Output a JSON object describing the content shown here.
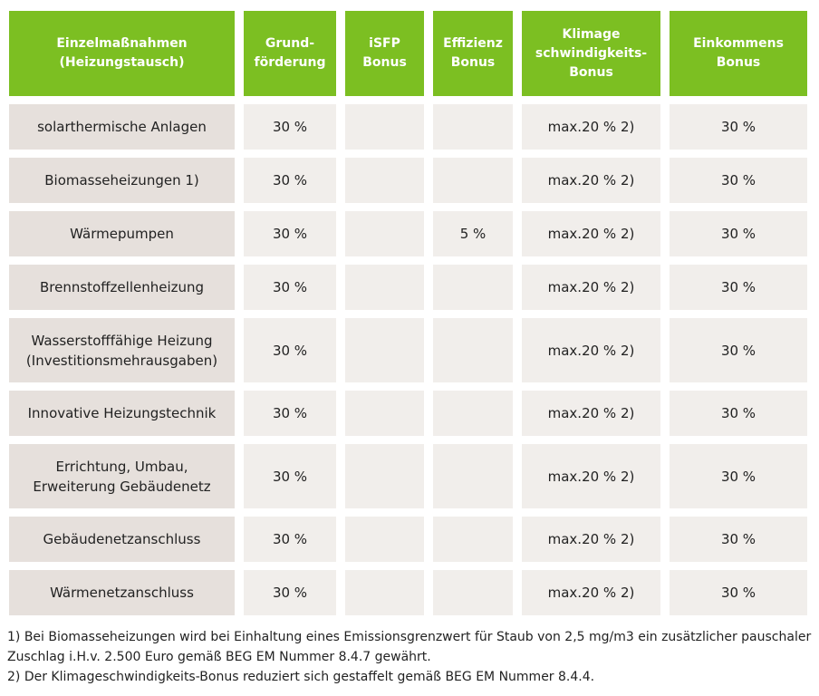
{
  "table": {
    "headers": [
      "Einzelmaßnahmen\n(Heizungstausch)",
      "Grund-\nförderung",
      "iSFP\nBonus",
      "Effizienz\nBonus",
      "Klimage\nschwindigkeits-\nBonus",
      "Einkommens\nBonus"
    ],
    "rows": [
      [
        "solarthermische Anlagen",
        "30 %",
        "",
        "",
        "max.20 % 2)",
        "30 %"
      ],
      [
        "Biomasseheizungen 1)",
        "30 %",
        "",
        "",
        "max.20 % 2)",
        "30 %"
      ],
      [
        "Wärmepumpen",
        "30 %",
        "",
        "5 %",
        "max.20 % 2)",
        "30 %"
      ],
      [
        "Brennstoffzellenheizung",
        "30 %",
        "",
        "",
        "max.20 % 2)",
        "30 %"
      ],
      [
        "Wasserstofffähige Heizung\n(Investitionsmehrausgaben)",
        "30 %",
        "",
        "",
        "max.20 % 2)",
        "30 %"
      ],
      [
        "Innovative Heizungstechnik",
        "30 %",
        "",
        "",
        "max.20 % 2)",
        "30 %"
      ],
      [
        "Errichtung, Umbau,\nErweiterung Gebäudenetz",
        "30 %",
        "",
        "",
        "max.20 % 2)",
        "30 %"
      ],
      [
        "Gebäudenetzanschluss",
        "30 %",
        "",
        "",
        "max.20 % 2)",
        "30 %"
      ],
      [
        "Wärmenetzanschluss",
        "30 %",
        "",
        "",
        "max.20 % 2)",
        "30 %"
      ]
    ]
  },
  "footnotes": [
    "1) Bei Biomasseheizungen wird bei Einhaltung eines Emissionsgrenzwert für Staub von 2,5 mg/m3 ein zusätzlicher pauschaler Zuschlag i.H.v. 2.500 Euro gemäß BEG EM Nummer 8.4.7 gewährt.",
    "2) Der Klimageschwindigkeits-Bonus reduziert sich gestaffelt gemäß BEG EM Nummer 8.4.4."
  ],
  "colors": {
    "header_bg": "#7cbf22",
    "first_col_bg": "#e6e0dc",
    "cell_bg": "#f1eeeb"
  }
}
